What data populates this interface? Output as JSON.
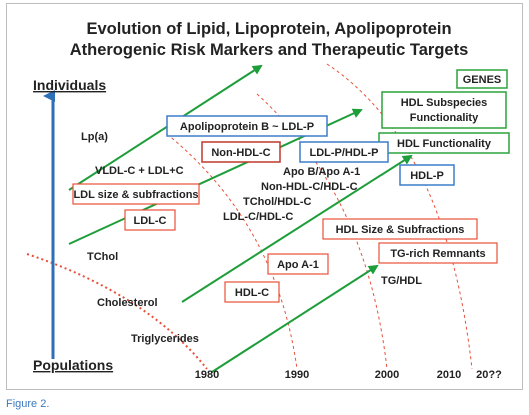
{
  "title": {
    "line1": "Evolution of Lipid, Lipoprotein, Apolipoprotein",
    "line2": "Atherogenic Risk Markers and Therapeutic Targets"
  },
  "axis": {
    "top_label": "Individuals",
    "bottom_label": "Populations",
    "years": [
      "1980",
      "1990",
      "2000",
      "2010",
      "20??"
    ]
  },
  "boxed_labels": {
    "genes": "GENES",
    "hdl_subspecies": [
      "HDL Subspecies",
      "Functionality"
    ],
    "hdl_functionality": "HDL Functionality",
    "hdl_p": "HDL-P",
    "apob_ldlp": "Apolipoprotein B ~ LDL-P",
    "ldlp_hdlp": "LDL-P/HDL-P",
    "non_hdl_c": "Non-HDL-C",
    "ldl_size": "LDL size & subfractions",
    "ldl_c": "LDL-C",
    "hdl_size": "HDL Size & Subfractions",
    "tg_remnants": "TG-rich Remnants",
    "apo_a1": "Apo A-1",
    "hdl_c": "HDL-C"
  },
  "plain_labels": {
    "lpa": "Lp(a)",
    "vldl": "VLDL-C + LDL+C",
    "apob_apoa1": "Apo B/Apo A-1",
    "nonhdl_hdl": "Non-HDL-C/HDL-C",
    "tchol_hdl": "TChol/HDL-C",
    "ldl_hdl": "LDL-C/HDL-C",
    "tg_hdl": "TG/HDL",
    "tchol": "TChol",
    "cholesterol": "Cholesterol",
    "triglycerides": "Triglycerides"
  },
  "caption": "Figure 2.",
  "colors": {
    "arrow_green": "#1e9e3a",
    "arc_red": "#e8503a",
    "axis_blue": "#2f6fb8",
    "box_blue": "#3d7dc8",
    "box_red": "#e8503a",
    "box_dark_red": "#c0392b",
    "box_green": "#2ca33c",
    "caption_blue": "#3a7bbf"
  }
}
